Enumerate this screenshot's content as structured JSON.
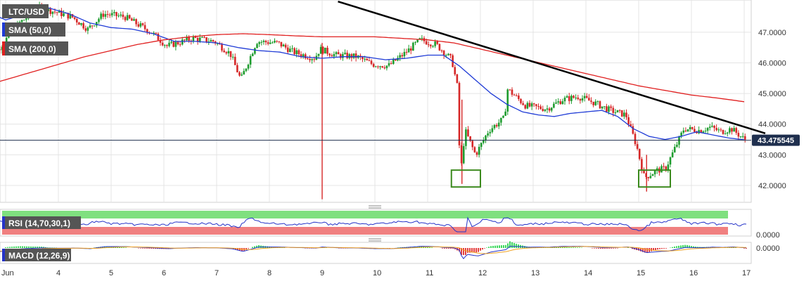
{
  "chart_data": {
    "type": "candlestick",
    "symbol": "LTC/USD",
    "x_labels": [
      "Jun",
      "4",
      "5",
      "6",
      "7",
      "8",
      "9",
      "10",
      "11",
      "12",
      "13",
      "14",
      "15",
      "16",
      "17"
    ],
    "y_ticks": [
      "47.0000",
      "46.0000",
      "45.0000",
      "44.0000",
      "43.0000",
      "42.0000"
    ],
    "y_tick_values": [
      47,
      46,
      45,
      44,
      43,
      42
    ],
    "ylim": [
      41.45,
      48.05
    ],
    "current_price": "43.475545",
    "current_price_value": 43.475545,
    "price_path": [
      [
        2.6,
        45.8
      ],
      [
        3.3,
        47.3
      ],
      [
        3.7,
        47.8
      ],
      [
        4.3,
        47.5
      ],
      [
        4.6,
        47.1
      ],
      [
        4.9,
        47.6
      ],
      [
        5.3,
        47.5
      ],
      [
        5.8,
        47.0
      ],
      [
        6.1,
        46.55
      ],
      [
        6.6,
        46.8
      ],
      [
        7.0,
        46.7
      ],
      [
        7.3,
        46.3
      ],
      [
        7.5,
        45.45
      ],
      [
        7.8,
        46.7
      ],
      [
        8.2,
        46.65
      ],
      [
        8.5,
        46.35
      ],
      [
        8.9,
        46.15
      ],
      [
        9.0,
        46.45
      ],
      [
        9.3,
        46.25
      ],
      [
        9.7,
        46.2
      ],
      [
        10.0,
        45.95
      ],
      [
        10.3,
        45.9
      ],
      [
        10.6,
        46.3
      ],
      [
        10.9,
        46.75
      ],
      [
        11.2,
        46.6
      ],
      [
        11.5,
        46.1
      ],
      [
        11.63,
        45.0
      ],
      [
        11.65,
        42.1
      ],
      [
        11.75,
        43.8
      ],
      [
        11.95,
        43.0
      ],
      [
        12.2,
        43.8
      ],
      [
        12.5,
        44.2
      ],
      [
        12.55,
        45.15
      ],
      [
        12.9,
        44.6
      ],
      [
        13.3,
        44.5
      ],
      [
        13.6,
        44.8
      ],
      [
        13.9,
        44.9
      ],
      [
        14.2,
        44.7
      ],
      [
        14.5,
        44.45
      ],
      [
        14.8,
        44.3
      ],
      [
        15.0,
        43.3
      ],
      [
        15.15,
        42.25
      ],
      [
        15.4,
        42.5
      ],
      [
        15.55,
        42.55
      ],
      [
        15.9,
        43.85
      ],
      [
        16.2,
        43.8
      ],
      [
        16.4,
        43.9
      ],
      [
        16.6,
        43.75
      ],
      [
        16.8,
        43.85
      ],
      [
        17.05,
        43.5
      ]
    ],
    "spikes": [
      [
        9.0,
        46.65,
        41.55
      ],
      [
        11.65,
        44.8,
        42.05
      ],
      [
        15.15,
        43.0,
        41.8
      ]
    ],
    "trendline": {
      "from": [
        9.3,
        48.0
      ],
      "to": [
        17.4,
        43.7
      ],
      "color": "#000000"
    },
    "support_boxes": [
      {
        "x": [
          11.45,
          12.0
        ],
        "y": [
          41.95,
          42.5
        ]
      },
      {
        "x": [
          15.0,
          15.6
        ],
        "y": [
          41.95,
          42.5
        ]
      }
    ],
    "series": [
      {
        "name": "SMA (50,0)",
        "color": "#1f3bd6",
        "points": [
          [
            2.6,
            47.7
          ],
          [
            3.0,
            47.4
          ],
          [
            3.4,
            47.6
          ],
          [
            3.8,
            47.8
          ],
          [
            4.2,
            47.6
          ],
          [
            4.6,
            47.3
          ],
          [
            5.0,
            47.15
          ],
          [
            5.4,
            47.1
          ],
          [
            5.8,
            46.95
          ],
          [
            6.2,
            46.7
          ],
          [
            6.6,
            46.7
          ],
          [
            7.0,
            46.65
          ],
          [
            7.4,
            46.5
          ],
          [
            7.8,
            46.4
          ],
          [
            8.2,
            46.35
          ],
          [
            8.6,
            46.2
          ],
          [
            9.0,
            46.15
          ],
          [
            9.4,
            46.2
          ],
          [
            9.8,
            46.2
          ],
          [
            10.2,
            46.1
          ],
          [
            10.6,
            46.15
          ],
          [
            11.0,
            46.25
          ],
          [
            11.3,
            46.25
          ],
          [
            11.6,
            45.9
          ],
          [
            11.9,
            45.45
          ],
          [
            12.2,
            45.0
          ],
          [
            12.5,
            44.65
          ],
          [
            12.8,
            44.4
          ],
          [
            13.1,
            44.3
          ],
          [
            13.4,
            44.25
          ],
          [
            13.7,
            44.35
          ],
          [
            14.0,
            44.4
          ],
          [
            14.3,
            44.45
          ],
          [
            14.6,
            44.25
          ],
          [
            14.9,
            43.85
          ],
          [
            15.2,
            43.6
          ],
          [
            15.5,
            43.5
          ],
          [
            15.8,
            43.6
          ],
          [
            16.1,
            43.75
          ],
          [
            16.4,
            43.65
          ],
          [
            16.7,
            43.55
          ],
          [
            17.05,
            43.48
          ]
        ]
      },
      {
        "name": "SMA (200,0)",
        "color": "#e02020",
        "points": [
          [
            2.6,
            45.25
          ],
          [
            3.0,
            45.45
          ],
          [
            3.5,
            45.7
          ],
          [
            4.0,
            45.95
          ],
          [
            4.5,
            46.2
          ],
          [
            5.0,
            46.4
          ],
          [
            5.5,
            46.6
          ],
          [
            6.0,
            46.75
          ],
          [
            6.5,
            46.85
          ],
          [
            7.0,
            46.92
          ],
          [
            7.5,
            46.95
          ],
          [
            8.0,
            46.92
          ],
          [
            8.5,
            46.88
          ],
          [
            9.0,
            46.85
          ],
          [
            9.5,
            46.85
          ],
          [
            10.0,
            46.85
          ],
          [
            10.5,
            46.8
          ],
          [
            11.0,
            46.75
          ],
          [
            11.5,
            46.65
          ],
          [
            12.0,
            46.45
          ],
          [
            12.5,
            46.25
          ],
          [
            13.0,
            46.05
          ],
          [
            13.5,
            45.85
          ],
          [
            14.0,
            45.65
          ],
          [
            14.5,
            45.45
          ],
          [
            15.0,
            45.25
          ],
          [
            15.5,
            45.1
          ],
          [
            16.0,
            44.95
          ],
          [
            16.5,
            44.85
          ],
          [
            17.05,
            44.72
          ]
        ]
      }
    ],
    "indicators": [
      {
        "name": "RSI (14,70,30,1)",
        "tick": "0.0000"
      },
      {
        "name": "MACD (12,26,9)",
        "tick": "0.0000"
      }
    ]
  },
  "colors": {
    "grid": "#e4e4e4",
    "up": "#1e9c2e",
    "down": "#d62828",
    "label_bg": "#555555",
    "price_label_bg": "#1f2f4e",
    "box": "#3c8a1e",
    "rsi_top": "#7fe07f",
    "rsi_bottom": "#f08080",
    "rsi_line": "#2533c8",
    "macd_pos": "#27d44a",
    "macd_neg": "#e02a2a",
    "macd_line": "#2533c8",
    "signal_line": "#f0a020"
  }
}
